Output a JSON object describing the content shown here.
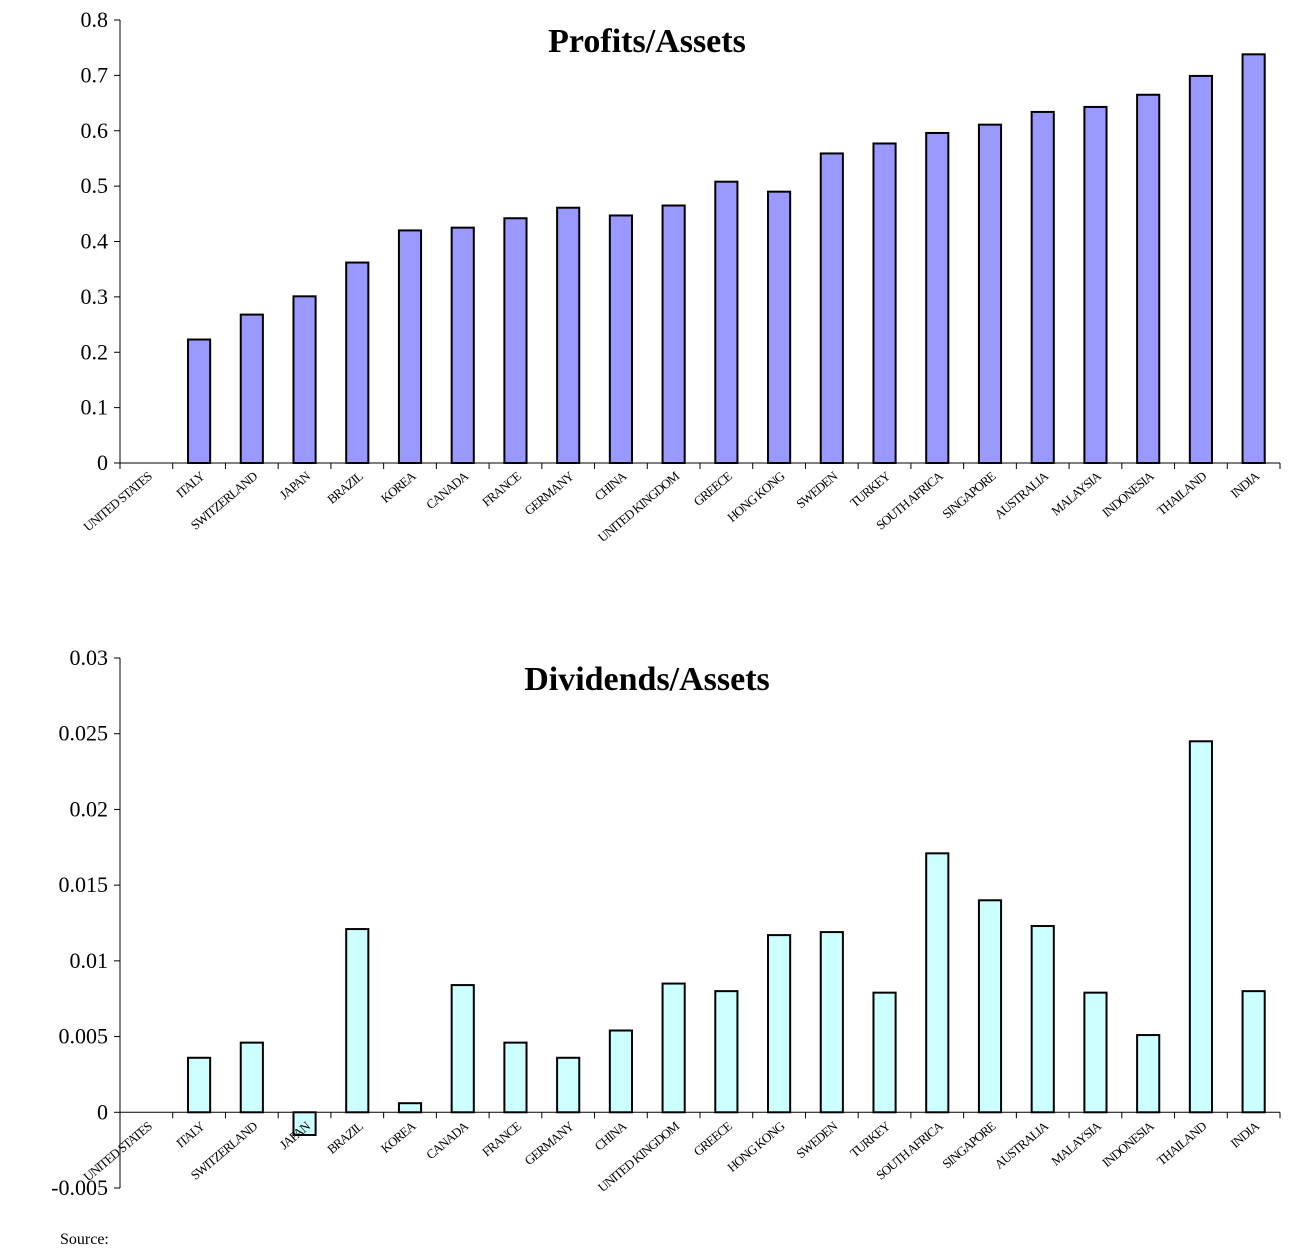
{
  "chart_data": [
    {
      "type": "bar",
      "title": "Profits/Assets",
      "xlabel": "",
      "ylabel": "",
      "ylim": [
        0,
        0.8
      ],
      "yticks": [
        "0",
        "0.1",
        "0.2",
        "0.3",
        "0.4",
        "0.5",
        "0.6",
        "0.7",
        "0.8"
      ],
      "bar_color": "#9999ff",
      "grid": false,
      "legend": "none",
      "categories": [
        "UNITED STATES",
        "ITALY",
        "SWITZERLAND",
        "JAPAN",
        "BRAZIL",
        "KOREA",
        "CANADA",
        "FRANCE",
        "GERMANY",
        "CHINA",
        "UNITED KINGDOM",
        "GREECE",
        "HONG KONG",
        "SWEDEN",
        "TURKEY",
        "SOUTH AFRICA",
        "SINGAPORE",
        "AUSTRALIA",
        "MALAYSIA",
        "INDONESIA",
        "THAILAND",
        "INDIA"
      ],
      "values": [
        0,
        0.223,
        0.268,
        0.301,
        0.362,
        0.42,
        0.425,
        0.442,
        0.461,
        0.447,
        0.465,
        0.508,
        0.49,
        0.559,
        0.577,
        0.596,
        0.611,
        0.634,
        0.643,
        0.665,
        0.699,
        0.738
      ]
    },
    {
      "type": "bar",
      "title": "Dividends/Assets",
      "xlabel": "",
      "ylabel": "",
      "ylim": [
        -0.005,
        0.03
      ],
      "yticks": [
        "-0.005",
        "0",
        "0.005",
        "0.01",
        "0.015",
        "0.02",
        "0.025",
        "0.03"
      ],
      "bar_color": "#ccffff",
      "grid": false,
      "legend": "none",
      "categories": [
        "UNITED STATES",
        "ITALY",
        "SWITZERLAND",
        "JAPAN",
        "BRAZIL",
        "KOREA",
        "CANADA",
        "FRANCE",
        "GERMANY",
        "CHINA",
        "UNITED KINGDOM",
        "GREECE",
        "HONG KONG",
        "SWEDEN",
        "TURKEY",
        "SOUTH AFRICA",
        "SINGAPORE",
        "AUSTRALIA",
        "MALAYSIA",
        "INDONESIA",
        "THAILAND",
        "INDIA"
      ],
      "values": [
        0,
        0.0036,
        0.0046,
        -0.0015,
        0.0121,
        0.0006,
        0.0084,
        0.0046,
        0.0036,
        0.0054,
        0.0085,
        0.008,
        0.0117,
        0.0119,
        0.0079,
        0.0171,
        0.014,
        0.0123,
        0.0079,
        0.0051,
        0.0245,
        0.008
      ]
    }
  ],
  "footer": {
    "source_label": "Source:"
  }
}
